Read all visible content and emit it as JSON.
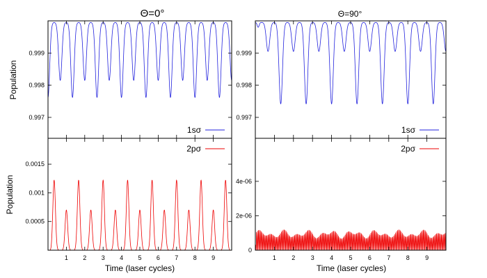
{
  "colors": {
    "blue": "#2222dd",
    "red": "#ee0000",
    "axis": "#000000"
  },
  "chart_data": [
    {
      "panel": "top-left",
      "type": "line",
      "title": "Θ=0°",
      "xlabel": "",
      "ylabel": "Population",
      "xlim": [
        0,
        10
      ],
      "ylim": [
        0.99635,
        1.0
      ],
      "yticks": [
        0.997,
        0.998,
        0.999
      ],
      "ytick_labels": [
        "0.997",
        "0.998",
        "0.999"
      ],
      "xticks": [
        1,
        2,
        3,
        4,
        5,
        6,
        7,
        8,
        9
      ],
      "xtick_labels": [],
      "legend": "bottom-right",
      "series": [
        {
          "name": "1sσ",
          "color": "#2222dd",
          "period": 0.6667,
          "deep_min": 0.99762,
          "shallow_min": 0.99815,
          "baseline": 0.99995
        }
      ]
    },
    {
      "panel": "top-right",
      "type": "line",
      "title": "Θ=90°",
      "xlabel": "",
      "ylabel": "",
      "xlim": [
        0,
        10
      ],
      "ylim": [
        0.99635,
        1.0
      ],
      "yticks": [
        0.997,
        0.998,
        0.999
      ],
      "ytick_labels": [
        "0.997",
        "0.998",
        "0.999"
      ],
      "xticks": [
        1,
        2,
        3,
        4,
        5,
        6,
        7,
        8,
        9
      ],
      "xtick_labels": [],
      "legend": "bottom-right",
      "series": [
        {
          "name": "1sσ",
          "color": "#2222dd",
          "period": 0.6667,
          "deep_min": 0.99742,
          "shallow_min": 0.99905,
          "baseline": 0.99995
        }
      ]
    },
    {
      "panel": "bottom-left",
      "type": "line",
      "title": "",
      "xlabel": "Time (laser cycles)",
      "ylabel": "Population",
      "xlim": [
        0,
        10
      ],
      "ylim": [
        0,
        0.00195
      ],
      "yticks": [
        0.0005,
        0.001,
        0.0015
      ],
      "ytick_labels": [
        "0.0005",
        "0.001",
        "0.0015"
      ],
      "xticks": [
        1,
        2,
        3,
        4,
        5,
        6,
        7,
        8,
        9
      ],
      "xtick_labels": [
        "1",
        "2",
        "3",
        "4",
        "5",
        "6",
        "7",
        "8",
        "9"
      ],
      "legend": "top-right",
      "series": [
        {
          "name": "2pσ",
          "color": "#ee0000",
          "period": 0.6667,
          "high_peak": 0.00122,
          "low_peak": 0.0007
        }
      ]
    },
    {
      "panel": "bottom-right",
      "type": "line",
      "title": "",
      "xlabel": "Time (laser cycles)",
      "ylabel": "",
      "xlim": [
        0,
        10
      ],
      "ylim": [
        0,
        6.5e-06
      ],
      "yticks": [
        0,
        2e-06,
        4e-06
      ],
      "ytick_labels": [
        "0",
        "2e-06",
        "4e-06"
      ],
      "xticks": [
        1,
        2,
        3,
        4,
        5,
        6,
        7,
        8,
        9
      ],
      "xtick_labels": [
        "1",
        "2",
        "3",
        "4",
        "5",
        "6",
        "7",
        "8",
        "9"
      ],
      "legend": "top-right",
      "series": [
        {
          "name": "2pσ",
          "color": "#ee0000",
          "oscillations_per_cycle": 20,
          "max": 1.2e-06,
          "min": 0
        }
      ]
    }
  ]
}
